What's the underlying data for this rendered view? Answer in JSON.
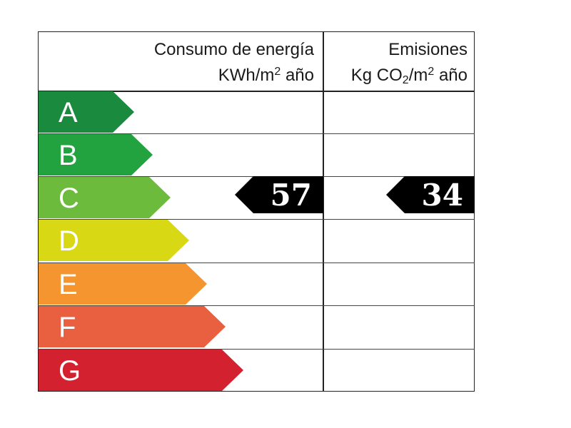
{
  "header": {
    "energy_line1": "Consumo de energía",
    "energy_line2_pre": "KWh/m",
    "energy_line2_sup": "2",
    "energy_line2_post": " año",
    "emissions_line1": "Emisiones",
    "emissions_line2_pre": "Kg CO",
    "emissions_line2_sub": "2",
    "emissions_line2_mid": "/m",
    "emissions_line2_sup": "2",
    "emissions_line2_post": " año"
  },
  "bands": [
    {
      "letter": "A",
      "color": "#1a8a3f"
    },
    {
      "letter": "B",
      "color": "#22a33f"
    },
    {
      "letter": "C",
      "color": "#6dbb3c"
    },
    {
      "letter": "D",
      "color": "#d9d815"
    },
    {
      "letter": "E",
      "color": "#f4952f"
    },
    {
      "letter": "F",
      "color": "#e8603f"
    },
    {
      "letter": "G",
      "color": "#d3212f"
    }
  ],
  "rating": {
    "energy_value": "57",
    "emissions_value": "34",
    "class": "C",
    "marker_color": "#000000"
  }
}
